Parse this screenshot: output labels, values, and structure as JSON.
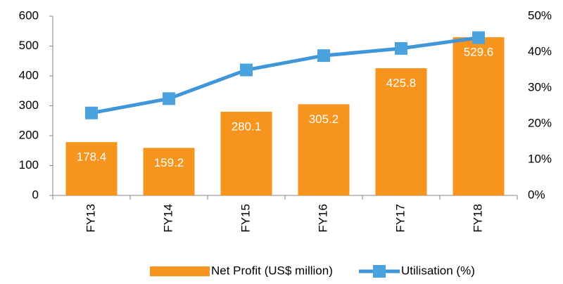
{
  "chart_data": {
    "type": "bar",
    "categories": [
      "FY13",
      "FY14",
      "FY15",
      "FY16",
      "FY17",
      "FY18"
    ],
    "series": [
      {
        "name": "Net Profit (US$ million)",
        "type": "bar",
        "color": "#f7941d",
        "values": [
          178.4,
          159.2,
          280.1,
          305.2,
          425.8,
          529.6
        ]
      },
      {
        "name": "Utilisation (%)",
        "type": "line",
        "axis": "y2",
        "color": "#3f96d8",
        "values": [
          23,
          27,
          35,
          39,
          41,
          44
        ]
      }
    ],
    "ylim": [
      0,
      600
    ],
    "yticks": [
      0,
      100,
      200,
      300,
      400,
      500,
      600
    ],
    "y2lim": [
      0,
      50
    ],
    "y2ticks": [
      {
        "value": 0,
        "label": "0%"
      },
      {
        "value": 10,
        "label": "10%"
      },
      {
        "value": 20,
        "label": "20%"
      },
      {
        "value": 30,
        "label": "30%"
      },
      {
        "value": 40,
        "label": "40%"
      },
      {
        "value": 50,
        "label": "50%"
      }
    ],
    "grid": false,
    "legend": "bottom"
  }
}
